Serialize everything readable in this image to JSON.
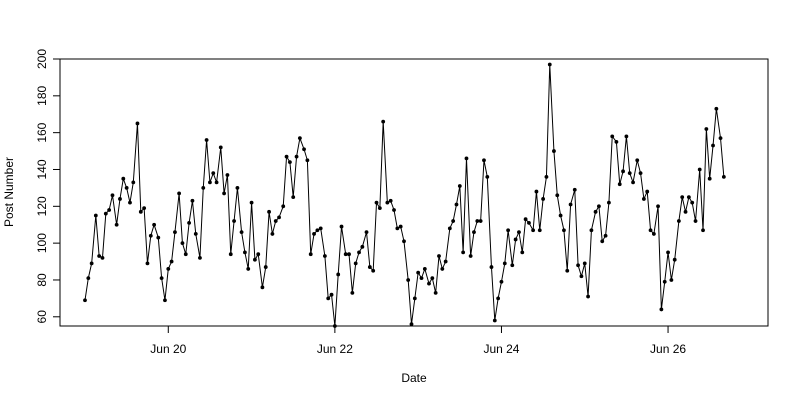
{
  "chart_data": {
    "type": "line",
    "xlabel": "Date",
    "ylabel": "Post Number",
    "ylim": [
      55,
      200
    ],
    "y_ticks": [
      60,
      80,
      100,
      120,
      140,
      160,
      180,
      200
    ],
    "x_ticks": [
      {
        "label": "Jun 20",
        "x": 1.0
      },
      {
        "label": "Jun 22",
        "x": 3.0
      },
      {
        "label": "Jun 24",
        "x": 5.0
      },
      {
        "label": "Jun 26",
        "x": 7.0
      }
    ],
    "xlim": [
      -0.3,
      8.2
    ],
    "x_unit": "days since Jun 19 00:00",
    "grid": false,
    "markers": "filled-circle",
    "series": [
      {
        "x": [
          0.0,
          0.04,
          0.08,
          0.13,
          0.17,
          0.21,
          0.25,
          0.29,
          0.33,
          0.38,
          0.42,
          0.46,
          0.5,
          0.54,
          0.58,
          0.63,
          0.67,
          0.71,
          0.75,
          0.79,
          0.83,
          0.88,
          0.92,
          0.96,
          1.0,
          1.04,
          1.08,
          1.13,
          1.17,
          1.21,
          1.25,
          1.29,
          1.33,
          1.38,
          1.42,
          1.46,
          1.5,
          1.54,
          1.58,
          1.63,
          1.67,
          1.71,
          1.75,
          1.79,
          1.83,
          1.88,
          1.92,
          1.96,
          2.0,
          2.04,
          2.08,
          2.13,
          2.17,
          2.21,
          2.25,
          2.29,
          2.33,
          2.38,
          2.42,
          2.46,
          2.5,
          2.54,
          2.58,
          2.63,
          2.67,
          2.71,
          2.75,
          2.79,
          2.83,
          2.88,
          2.92,
          2.96,
          3.0,
          3.04,
          3.08,
          3.13,
          3.17,
          3.21,
          3.25,
          3.29,
          3.33,
          3.38,
          3.42,
          3.46,
          3.5,
          3.54,
          3.58,
          3.63,
          3.67,
          3.71,
          3.75,
          3.79,
          3.83,
          3.88,
          3.92,
          3.96,
          4.0,
          4.04,
          4.08,
          4.13,
          4.17,
          4.21,
          4.25,
          4.29,
          4.33,
          4.38,
          4.42,
          4.46,
          4.5,
          4.54,
          4.58,
          4.63,
          4.67,
          4.71,
          4.75,
          4.79,
          4.83,
          4.88,
          4.92,
          4.96,
          5.0,
          5.04,
          5.08,
          5.13,
          5.17,
          5.21,
          5.25,
          5.29,
          5.33,
          5.38,
          5.42,
          5.46,
          5.5,
          5.54,
          5.58,
          5.63,
          5.67,
          5.71,
          5.75,
          5.79,
          5.83,
          5.88,
          5.92,
          5.96,
          6.0,
          6.04,
          6.08,
          6.13,
          6.17,
          6.21,
          6.25,
          6.29,
          6.33,
          6.38,
          6.42,
          6.46,
          6.5,
          6.54,
          6.58,
          6.63,
          6.67,
          6.71,
          6.75,
          6.79,
          6.83,
          6.88,
          6.92,
          6.96,
          7.0,
          7.04,
          7.08,
          7.13,
          7.17,
          7.21,
          7.25,
          7.29,
          7.33,
          7.38,
          7.42,
          7.46,
          7.5,
          7.54,
          7.58,
          7.63,
          7.67
        ],
        "y": [
          69,
          81,
          89,
          115,
          93,
          92,
          116,
          118,
          126,
          110,
          124,
          135,
          130,
          122,
          133,
          165,
          117,
          119,
          89,
          104,
          110,
          103,
          81,
          69,
          86,
          90,
          106,
          127,
          100,
          94,
          111,
          123,
          105,
          92,
          130,
          156,
          133,
          138,
          133,
          152,
          127,
          137,
          94,
          112,
          130,
          106,
          95,
          86,
          122,
          91,
          94,
          76,
          87,
          117,
          105,
          112,
          114,
          120,
          147,
          144,
          125,
          147,
          157,
          151,
          145,
          94,
          105,
          107,
          108,
          93,
          70,
          72,
          55,
          83,
          109,
          94,
          94,
          73,
          89,
          95,
          98,
          106,
          87,
          85,
          122,
          119,
          166,
          122,
          123,
          118,
          108,
          109,
          101,
          80,
          56,
          70,
          84,
          81,
          86,
          78,
          81,
          73,
          93,
          86,
          90,
          108,
          112,
          121,
          131,
          95,
          146,
          93,
          106,
          112,
          112,
          145,
          136,
          87,
          58,
          70,
          79,
          89,
          107,
          88,
          102,
          106,
          95,
          113,
          111,
          107,
          128,
          107,
          124,
          136,
          197,
          150,
          126,
          115,
          107,
          85,
          121,
          129,
          88,
          82,
          89,
          71,
          107,
          117,
          120,
          101,
          104,
          122,
          158,
          155,
          132,
          139,
          158,
          138,
          133,
          145,
          138,
          124,
          128,
          107,
          105,
          120,
          64,
          79,
          95,
          80,
          91,
          112,
          125,
          117,
          125,
          122,
          112,
          140,
          107,
          162,
          135,
          153,
          173,
          157,
          136
        ]
      }
    ]
  }
}
